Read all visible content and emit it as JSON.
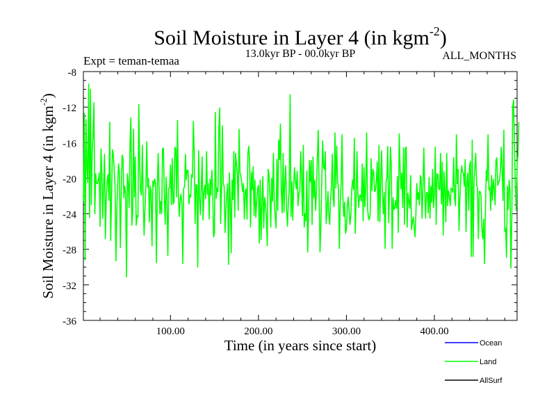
{
  "chart_data": {
    "type": "line",
    "title": "Soil Moisture in Layer 4 (in kgm",
    "title_sup": "-2",
    "title_close": ")",
    "experiment": "Expt = teman-temaa",
    "period": "13.0kyr BP - 00.0kyr BP",
    "months": "ALL_MONTHS",
    "xlabel": "Time (in years since start)",
    "ylabel": "Soil Moisture in Layer 4 (in kgm",
    "ylabel_sup": "-2",
    "ylabel_close": ")",
    "xlim": [
      1,
      494
    ],
    "ylim": [
      -36,
      -8
    ],
    "x_ticks": [
      100,
      200,
      300,
      400
    ],
    "x_tick_labels": [
      "100.00",
      "200.00",
      "300.00",
      "400.00"
    ],
    "y_ticks": [
      -36,
      -32,
      -28,
      -24,
      -20,
      -16,
      -12,
      -8
    ],
    "y_tick_labels": [
      "-36",
      "-32",
      "-28",
      "-24",
      "-20",
      "-16",
      "-12",
      "-8"
    ],
    "legend": [
      {
        "name": "Ocean",
        "color": "#0000ff"
      },
      {
        "name": "Land",
        "color": "#00ff00"
      },
      {
        "name": "AllSurf",
        "color": "#000000"
      }
    ],
    "series": [
      {
        "name": "Land",
        "color": "#00ff00",
        "x_start": 1,
        "x_step": 1,
        "values": [
          -22.6,
          -12.7,
          -29.2,
          -13.4,
          -18.7,
          -20.5,
          -9.4,
          -24.4,
          -10.0,
          -23.0,
          -17.0,
          -15.0,
          -11.5,
          -24.0,
          -19.5,
          -20.6,
          -20.6,
          -20.2,
          -19.4,
          -25.4,
          -16.7,
          -19.3,
          -24.5,
          -20.9,
          -17.3,
          -26.8,
          -22.2,
          -20.3,
          -19.6,
          -22.5,
          -13.7,
          -27.0,
          -22.2,
          -16.8,
          -17.3,
          -19.0,
          -21.0,
          -29.3,
          -23.5,
          -20.7,
          -18.4,
          -19.6,
          -27.8,
          -21.8,
          -17.4,
          -17.7,
          -22.2,
          -20.9,
          -21.7,
          -31.1,
          -19.5,
          -20.6,
          -23.3,
          -16.0,
          -13.2,
          -25.3,
          -23.8,
          -14.5,
          -22.1,
          -17.6,
          -25.3,
          -24.2,
          -24.4,
          -11.7,
          -18.6,
          -21.4,
          -21.9,
          -16.3,
          -22.3,
          -26.4,
          -23.4,
          -20.8,
          -15.9,
          -21.0,
          -20.0,
          -24.9,
          -20.9,
          -21.5,
          -27.6,
          -20.3,
          -20.9,
          -20.1,
          -20.5,
          -29.5,
          -21.3,
          -17.2,
          -21.2,
          -24.0,
          -22.6,
          -24.0,
          -16.7,
          -16.6,
          -22.1,
          -25.2,
          -19.9,
          -22.4,
          -28.7,
          -21.1,
          -21.1,
          -18.5,
          -23.0,
          -17.8,
          -22.9,
          -22.7,
          -16.5,
          -16.7,
          -22.1,
          -13.5,
          -22.0,
          -24.3,
          -22.4,
          -21.8,
          -23.0,
          -29.6,
          -21.2,
          -20.9,
          -17.3,
          -20.2,
          -19.1,
          -19.1,
          -22.9,
          -21.9,
          -22.1,
          -19.6,
          -19.9,
          -13.6,
          -17.4,
          -25.1,
          -20.7,
          -20.8,
          -30.0,
          -16.9,
          -22.3,
          -24.1,
          -21.2,
          -17.6,
          -24.7,
          -21.6,
          -20.8,
          -22.3,
          -17.0,
          -21.8,
          -20.6,
          -24.6,
          -20.1,
          -21.9,
          -19.1,
          -21.3,
          -26.6,
          -26.2,
          -12.6,
          -22.3,
          -21.1,
          -21.5,
          -14.3,
          -12.1,
          -25.1,
          -21.3,
          -14.1,
          -20.6,
          -20.9,
          -26.1,
          -23.5,
          -21.8,
          -20.6,
          -29.7,
          -19.4,
          -22.5,
          -28.4,
          -20.2,
          -22.4,
          -17.0,
          -24.4,
          -17.2,
          -18.4,
          -19.5,
          -23.6,
          -14.5,
          -19.4,
          -19.7,
          -20.5,
          -21.5,
          -20.6,
          -24.6,
          -21.5,
          -21.2,
          -24.6,
          -17.2,
          -16.4,
          -18.3,
          -25.5,
          -19.3,
          -21.3,
          -18.7,
          -24.2,
          -20.2,
          -24.4,
          -22.7,
          -21.2,
          -20.8,
          -27.3,
          -20.2,
          -26.9,
          -22.7,
          -19.8,
          -25.6,
          -22.2,
          -22.9,
          -24.5,
          -27.6,
          -19.0,
          -19.6,
          -21.7,
          -25.5,
          -20.0,
          -22.6,
          -17.2,
          -22.7,
          -24.3,
          -25.6,
          -17.9,
          -23.6,
          -15.7,
          -17.9,
          -13.9,
          -21.5,
          -23.9,
          -17.2,
          -23.8,
          -20.5,
          -18.6,
          -23.6,
          -25.4,
          -22.7,
          -21.2,
          -10.6,
          -24.3,
          -20.4,
          -24.7,
          -20.8,
          -18.8,
          -20.4,
          -21.2,
          -19.2,
          -23.1,
          -21.7,
          -21.5,
          -17.0,
          -19.6,
          -24.2,
          -16.3,
          -25.5,
          -24.0,
          -24.8,
          -19.2,
          -28.3,
          -23.6,
          -18.0,
          -20.4,
          -18.0,
          -25.2,
          -17.6,
          -22.2,
          -20.2,
          -23.6,
          -21.3,
          -17.6,
          -14.6,
          -22.0,
          -28.3,
          -25.2,
          -20.2,
          -15.8,
          -18.8,
          -19.0,
          -17.0,
          -25.1,
          -23.6,
          -21.5,
          -24.2,
          -25.2,
          -22.3,
          -21.0,
          -17.3,
          -22.3,
          -23.2,
          -14.9,
          -21.1,
          -16.4,
          -20.3,
          -21.2,
          -27.9,
          -22.7,
          -20.6,
          -15.1,
          -22.3,
          -24.3,
          -22.7,
          -26.2,
          -25.8,
          -23.2,
          -22.1,
          -23.6,
          -25.2,
          -24.3,
          -21.3,
          -20.2,
          -21.3,
          -15.5,
          -26.2,
          -22.6,
          -17.0,
          -21.7,
          -23.3,
          -21.9,
          -21.9,
          -22.6,
          -18.4,
          -24.8,
          -18.8,
          -23.2,
          -21.0,
          -14.9,
          -23.4,
          -24.4,
          -24.7,
          -24.0,
          -17.8,
          -21.4,
          -19.0,
          -19.3,
          -21.5,
          -21.4,
          -20.3,
          -18.2,
          -24.8,
          -16.3,
          -24.9,
          -20.2,
          -16.9,
          -21.6,
          -24.0,
          -21.6,
          -27.9,
          -20.4,
          -20.0,
          -16.4,
          -25.0,
          -21.4,
          -16.5,
          -18.4,
          -27.9,
          -22.2,
          -23.5,
          -23.4,
          -22.5,
          -23.4,
          -19.8,
          -26.1,
          -15.0,
          -18.8,
          -21.2,
          -19.4,
          -23.3,
          -16.6,
          -25.2,
          -16.6,
          -16.5,
          -25.5,
          -21.7,
          -22.6,
          -23.4,
          -19.7,
          -25.8,
          -24.9,
          -24.4,
          -25.5,
          -26.6,
          -23.9,
          -20.6,
          -22.4,
          -21.6,
          -23.0,
          -19.7,
          -20.0,
          -24.5,
          -20.9,
          -16.6,
          -21.2,
          -24.5,
          -21.6,
          -21.6,
          -23.9,
          -19.9,
          -24.5,
          -20.9,
          -22.7,
          -19.0,
          -23.3,
          -21.9,
          -16.5,
          -25.2,
          -19.5,
          -19.6,
          -21.2,
          -21.3,
          -17.2,
          -22.9,
          -18.2,
          -26.4,
          -19.3,
          -21.5,
          -24.9,
          -17.2,
          -23.1,
          -21.4,
          -22.0,
          -23.1,
          -21.1,
          -21.2,
          -21.6,
          -17.7,
          -22.3,
          -23.1,
          -15.1,
          -20.6,
          -19.0,
          -25.9,
          -22.2,
          -19.9,
          -18.6,
          -19.3,
          -19.4,
          -20.9,
          -17.9,
          -26.0,
          -20.4,
          -19.4,
          -23.6,
          -18.6,
          -18.1,
          -28.8,
          -15.7,
          -28.8,
          -20.5,
          -18.8,
          -17.2,
          -20.7,
          -21.1,
          -26.8,
          -21.5,
          -21.5,
          -21.9,
          -25.7,
          -26.8,
          -24.6,
          -29.6,
          -23.6,
          -19.1,
          -20.3,
          -15.1,
          -21.3,
          -21.0,
          -23.6,
          -19.7,
          -22.5,
          -20.1,
          -21.1,
          -23.0,
          -18.0,
          -17.7,
          -20.8,
          -20.4,
          -20.3,
          -19.2,
          -16.5,
          -18.9,
          -22.5,
          -14.6,
          -26.0,
          -25.6,
          -28.9,
          -20.9,
          -23.5,
          -20.2,
          -21.5,
          -30.1,
          -24.6,
          -12.0,
          -11.2,
          -16.4,
          -20.5,
          -23.6,
          -18.6,
          -17.3,
          -13.7
        ]
      }
    ]
  }
}
